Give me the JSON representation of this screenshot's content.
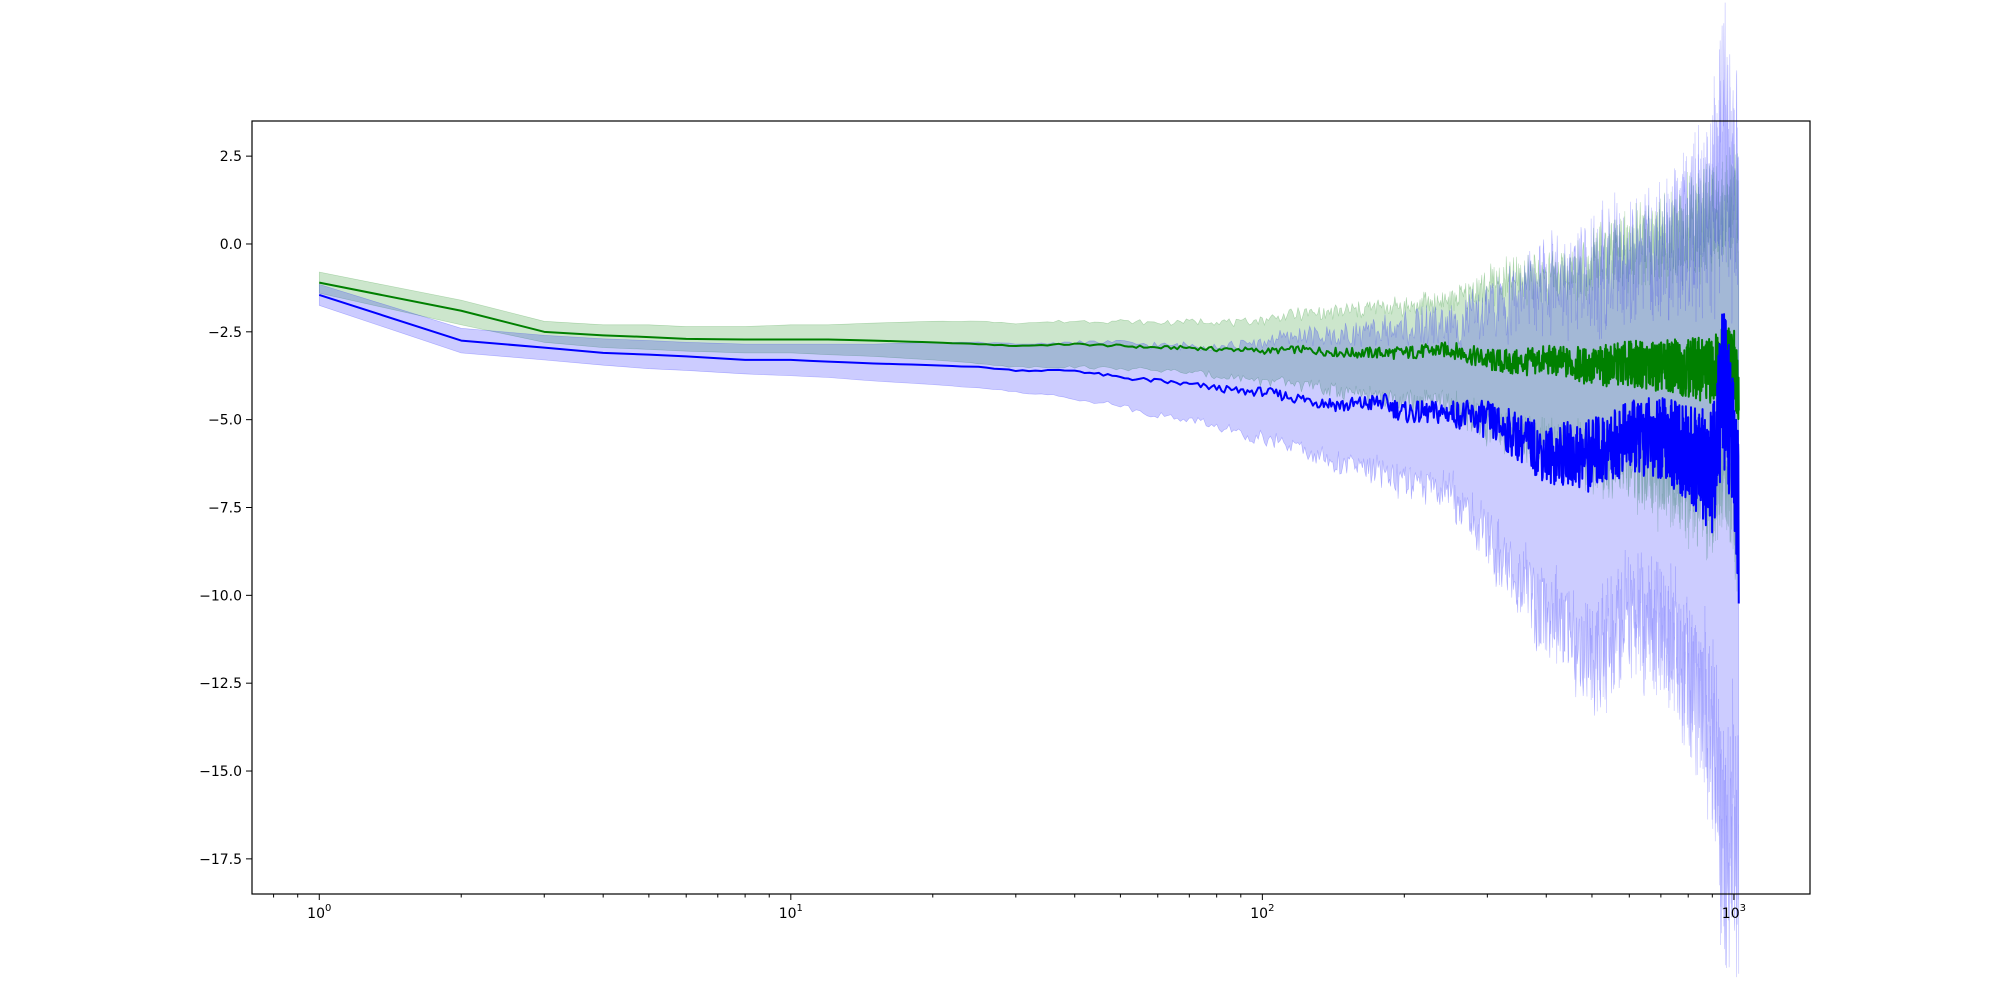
{
  "chart_data": {
    "type": "line",
    "title": "",
    "xlabel": "",
    "ylabel": "",
    "xscale": "log",
    "xlim": [
      0.72,
      1450
    ],
    "ylim": [
      -18.5,
      3.5
    ],
    "grid": false,
    "legend": "none",
    "x_ticks": [
      {
        "value": 1,
        "base": "10",
        "exp": "0"
      },
      {
        "value": 10,
        "base": "10",
        "exp": "1"
      },
      {
        "value": 100,
        "base": "10",
        "exp": "2"
      },
      {
        "value": 1000,
        "base": "10",
        "exp": "3"
      }
    ],
    "y_ticks": [
      {
        "value": 2.5,
        "label": "2.5"
      },
      {
        "value": 0,
        "label": "0.0"
      },
      {
        "value": -2.5,
        "label": "−2.5"
      },
      {
        "value": -5,
        "label": "−5.0"
      },
      {
        "value": -7.5,
        "label": "−7.5"
      },
      {
        "value": -10,
        "label": "−10.0"
      },
      {
        "value": -12.5,
        "label": "−12.5"
      },
      {
        "value": -15,
        "label": "−15.0"
      },
      {
        "value": -17.5,
        "label": "−17.5"
      }
    ],
    "series": [
      {
        "color": "#008000",
        "band_color": "#008000",
        "band_opacity": 0.2,
        "x": [
          1,
          2,
          3,
          4,
          5,
          6,
          8,
          10,
          12,
          15,
          20,
          25,
          30,
          40,
          50,
          60,
          70,
          80,
          90,
          100,
          120,
          150,
          180,
          200,
          250,
          300,
          350,
          400,
          450,
          500,
          600,
          700,
          800,
          900,
          950,
          1000,
          1024
        ],
        "mean": [
          -1.1,
          -1.9,
          -2.5,
          -2.6,
          -2.65,
          -2.7,
          -2.72,
          -2.72,
          -2.72,
          -2.75,
          -2.8,
          -2.85,
          -2.9,
          -2.85,
          -2.9,
          -2.95,
          -2.95,
          -3.0,
          -3.0,
          -3.05,
          -3.0,
          -3.1,
          -3.1,
          -3.1,
          -3.0,
          -3.3,
          -3.4,
          -3.3,
          -3.4,
          -3.5,
          -3.4,
          -3.5,
          -3.5,
          -3.6,
          -3.0,
          -3.5,
          -4.0
        ],
        "upper": [
          -0.8,
          -1.6,
          -2.2,
          -2.3,
          -2.3,
          -2.35,
          -2.35,
          -2.3,
          -2.3,
          -2.25,
          -2.2,
          -2.2,
          -2.25,
          -2.2,
          -2.2,
          -2.25,
          -2.2,
          -2.2,
          -2.25,
          -2.15,
          -2.0,
          -1.9,
          -1.8,
          -1.8,
          -1.6,
          -1.2,
          -1.0,
          -0.9,
          -0.8,
          -0.5,
          -0.2,
          0.1,
          0.5,
          0.8,
          1.0,
          1.2,
          0.8
        ],
        "lower": [
          -1.4,
          -2.3,
          -2.8,
          -2.95,
          -3.0,
          -3.05,
          -3.1,
          -3.1,
          -3.15,
          -3.2,
          -3.3,
          -3.4,
          -3.5,
          -3.5,
          -3.55,
          -3.6,
          -3.65,
          -3.75,
          -3.8,
          -3.9,
          -4.0,
          -4.2,
          -4.4,
          -4.5,
          -4.5,
          -5.2,
          -5.5,
          -5.6,
          -5.8,
          -6.2,
          -6.4,
          -6.8,
          -7.0,
          -7.5,
          -6.5,
          -7.8,
          -8.0
        ]
      },
      {
        "color": "#0000ff",
        "band_color": "#0000ff",
        "band_opacity": 0.2,
        "x": [
          1,
          2,
          3,
          4,
          5,
          6,
          8,
          10,
          12,
          15,
          20,
          25,
          30,
          40,
          50,
          60,
          70,
          80,
          90,
          100,
          120,
          150,
          180,
          200,
          250,
          300,
          350,
          400,
          450,
          500,
          600,
          700,
          800,
          900,
          950,
          1000,
          1024
        ],
        "mean": [
          -1.45,
          -2.75,
          -2.95,
          -3.1,
          -3.15,
          -3.2,
          -3.3,
          -3.3,
          -3.35,
          -3.4,
          -3.45,
          -3.5,
          -3.6,
          -3.6,
          -3.8,
          -3.9,
          -4.0,
          -4.1,
          -4.2,
          -4.2,
          -4.4,
          -4.6,
          -4.5,
          -4.8,
          -4.8,
          -5.0,
          -5.5,
          -6.0,
          -6.0,
          -6.0,
          -5.5,
          -5.5,
          -6.0,
          -6.5,
          -4.0,
          -6.0,
          -8.0
        ],
        "upper": [
          -1.15,
          -2.4,
          -2.6,
          -2.7,
          -2.75,
          -2.8,
          -2.85,
          -2.85,
          -2.85,
          -2.85,
          -2.8,
          -2.8,
          -2.85,
          -2.8,
          -2.8,
          -2.9,
          -2.9,
          -2.9,
          -2.9,
          -2.8,
          -2.6,
          -2.6,
          -2.5,
          -2.4,
          -2.3,
          -2.0,
          -1.5,
          -1.2,
          -1.0,
          -0.8,
          -0.5,
          -0.2,
          0.2,
          1.0,
          2.5,
          1.5,
          2.5
        ],
        "lower": [
          -1.75,
          -3.1,
          -3.3,
          -3.45,
          -3.55,
          -3.6,
          -3.7,
          -3.75,
          -3.8,
          -3.9,
          -4.0,
          -4.1,
          -4.2,
          -4.4,
          -4.6,
          -4.9,
          -5.0,
          -5.2,
          -5.4,
          -5.5,
          -5.8,
          -6.3,
          -6.5,
          -6.8,
          -7.0,
          -8.5,
          -9.5,
          -10.5,
          -11.0,
          -12.0,
          -10.5,
          -11.0,
          -12.0,
          -14.0,
          -17.5,
          -16.0,
          -17.5
        ]
      }
    ]
  }
}
